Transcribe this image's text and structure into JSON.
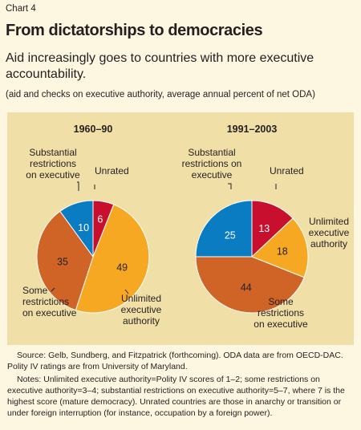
{
  "header": {
    "chart_number": "Chart 4",
    "title": "From dictatorships to democracies",
    "subtitle": "Aid increasingly goes to countries with more executive accountability.",
    "units_note": "(aid and checks on executive authority, average annual percent of net ODA)"
  },
  "colors": {
    "unrated": "#c8102e",
    "unlimited": "#f7a823",
    "some": "#cf6426",
    "substantial": "#0a7dc2",
    "panel": "#f0e0a8",
    "page": "#fdf6e0"
  },
  "chart_data": [
    {
      "type": "pie",
      "title": "1960–90",
      "slices": [
        {
          "key": "unrated",
          "label": "Unrated",
          "value": 6
        },
        {
          "key": "unlimited",
          "label": "Unlimited executive authority",
          "value": 49
        },
        {
          "key": "some",
          "label": "Some restrictions on executive",
          "value": 35
        },
        {
          "key": "substantial",
          "label": "Substantial restrictions on executive",
          "value": 10
        }
      ]
    },
    {
      "type": "pie",
      "title": "1991–2003",
      "slices": [
        {
          "key": "unrated",
          "label": "Unrated",
          "value": 13
        },
        {
          "key": "unlimited",
          "label": "Unlimited executive authority",
          "value": 18
        },
        {
          "key": "some",
          "label": "Some restrictions on executive",
          "value": 44
        },
        {
          "key": "substantial",
          "label": "Substantial restrictions on executive",
          "value": 25
        }
      ]
    }
  ],
  "footer": {
    "source": "Source: Gelb, Sundberg, and Fitzpatrick (forthcoming). ODA data are from OECD-DAC. Polity IV ratings are from University of Maryland.",
    "notes": "Notes: Unlimited executive authority=Polity IV scores of 1–2; some restrictions on executive authority=3–4; substantial restrictions on executive authority=5–7, where 7 is the highest score (mature democracy). Unrated countries are those in anarchy or transition or under foreign interruption (for instance, occupation by a foreign power)."
  }
}
